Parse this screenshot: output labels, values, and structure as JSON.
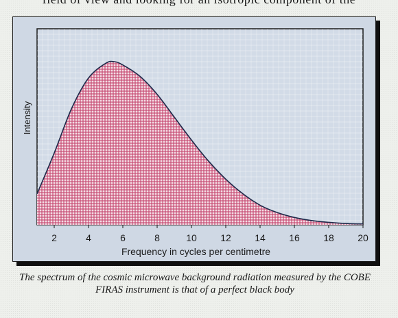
{
  "header_text": "field of view and looking for an isotropic component of the",
  "caption": "The spectrum of the cosmic microwave background radiation measured by the COBE FIRAS instrument is that of a perfect black body",
  "colors": {
    "fill": "#c8557a",
    "curve": "#1e2a4a",
    "background": "#d2dbe7"
  },
  "chart_data": {
    "type": "area",
    "title": "",
    "xlabel": "Frequency in cycles per centimetre",
    "ylabel": "Intensity",
    "xlim": [
      1,
      20
    ],
    "ylim": [
      0,
      1
    ],
    "x_ticks": [
      2,
      4,
      6,
      8,
      10,
      12,
      14,
      16,
      18,
      20
    ],
    "y_ticks_shown": false,
    "grid": true,
    "series": [
      {
        "x": [
          1,
          2,
          3,
          4,
          5,
          5.5,
          6,
          7,
          8,
          9,
          10,
          11,
          12,
          13,
          14,
          15,
          16,
          17,
          18,
          19,
          20
        ],
        "y": [
          0.19,
          0.44,
          0.71,
          0.9,
          0.99,
          1.0,
          0.98,
          0.91,
          0.8,
          0.66,
          0.52,
          0.39,
          0.28,
          0.19,
          0.12,
          0.075,
          0.045,
          0.026,
          0.015,
          0.008,
          0.005
        ]
      }
    ]
  }
}
